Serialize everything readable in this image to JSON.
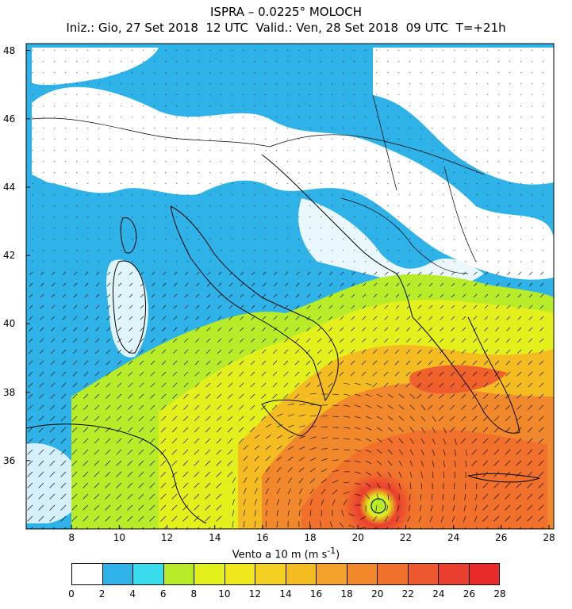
{
  "title": {
    "line1": "ISPRA – 0.0225° MOLOCH",
    "line2": "Iniz.: Gio, 27 Set 2018  12 UTC  Valid.: Ven, 28 Set 2018  09 UTC  T=+21h"
  },
  "map": {
    "lon_ticks": [
      "8",
      "10",
      "12",
      "14",
      "16",
      "18",
      "20",
      "22",
      "24",
      "26",
      "28"
    ],
    "lat_ticks": [
      "48",
      "46",
      "44",
      "42",
      "40",
      "38",
      "36"
    ],
    "lon_range": [
      6.1,
      28.2
    ],
    "lat_range": [
      34,
      48.2
    ],
    "cyclone_center": {
      "lon": 19.9,
      "lat": 34.6
    }
  },
  "colorbar": {
    "label": "Vento a 10 m (m s",
    "label_sup": "-1",
    "label_close": ")",
    "ticks": [
      "0",
      "2",
      "4",
      "6",
      "8",
      "10",
      "12",
      "14",
      "16",
      "18",
      "20",
      "22",
      "24",
      "26",
      "28"
    ],
    "colors": [
      "#ffffff",
      "#2fb2e8",
      "#38dcec",
      "#b8ec28",
      "#e4f01c",
      "#f0e81c",
      "#f4d020",
      "#f4bc20",
      "#f4a22c",
      "#f2882c",
      "#f0702c",
      "#ee582e",
      "#ea3e2e",
      "#e82a28"
    ]
  }
}
